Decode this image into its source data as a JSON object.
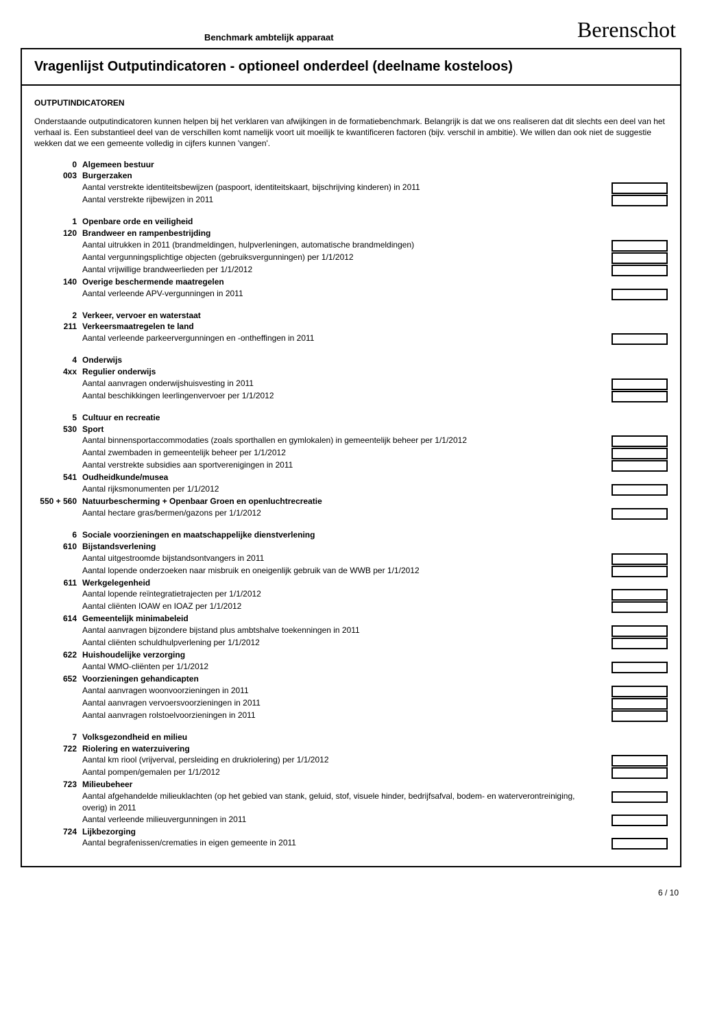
{
  "header": {
    "subtitle": "Benchmark ambtelijk apparaat",
    "brand": "Berenschot",
    "title": "Vragenlijst Outputindicatoren - optioneel onderdeel (deelname kosteloos)"
  },
  "section_label": "OUTPUTINDICATOREN",
  "intro": "Onderstaande outputindicatoren kunnen helpen bij het verklaren van afwijkingen in de formatiebenchmark. Belangrijk is dat we ons realiseren dat dit slechts een deel van het verhaal is. Een substantieel deel van de verschillen komt namelijk voort uit moeilijk te kwantificeren factoren (bijv. verschil in ambitie). We willen dan ook niet de suggestie wekken dat we een gemeente volledig in cijfers kunnen 'vangen'.",
  "groups": [
    {
      "rows": [
        {
          "code": "0",
          "text": "Algemeen bestuur",
          "bold": true,
          "box": false
        },
        {
          "code": "003",
          "text": "Burgerzaken",
          "bold": true,
          "box": false
        },
        {
          "code": "",
          "text": "Aantal verstrekte identiteitsbewijzen (paspoort, identiteitskaart, bijschrijving kinderen) in 2011",
          "bold": false,
          "box": true
        },
        {
          "code": "",
          "text": "Aantal verstrekte rijbewijzen in 2011",
          "bold": false,
          "box": true
        }
      ]
    },
    {
      "rows": [
        {
          "code": "1",
          "text": "Openbare orde en veiligheid",
          "bold": true,
          "box": false
        },
        {
          "code": "120",
          "text": "Brandweer en rampenbestrijding",
          "bold": true,
          "box": false
        },
        {
          "code": "",
          "text": "Aantal uitrukken in 2011 (brandmeldingen, hulpverleningen, automatische brandmeldingen)",
          "bold": false,
          "box": true
        },
        {
          "code": "",
          "text": "Aantal vergunningsplichtige objecten (gebruiksvergunningen) per 1/1/2012",
          "bold": false,
          "box": true
        },
        {
          "code": "",
          "text": "Aantal vrijwillige brandweerlieden per 1/1/2012",
          "bold": false,
          "box": true
        },
        {
          "code": "140",
          "text": "Overige beschermende maatregelen",
          "bold": true,
          "box": false
        },
        {
          "code": "",
          "text": "Aantal verleende APV-vergunningen in 2011",
          "bold": false,
          "box": true
        }
      ]
    },
    {
      "rows": [
        {
          "code": "2",
          "text": "Verkeer, vervoer en waterstaat",
          "bold": true,
          "box": false
        },
        {
          "code": "211",
          "text": "Verkeersmaatregelen te land",
          "bold": true,
          "box": false
        },
        {
          "code": "",
          "text": "Aantal verleende parkeervergunningen en -ontheffingen in 2011",
          "bold": false,
          "box": true
        }
      ]
    },
    {
      "rows": [
        {
          "code": "4",
          "text": "Onderwijs",
          "bold": true,
          "box": false
        },
        {
          "code": "4xx",
          "text": "Regulier onderwijs",
          "bold": true,
          "box": false
        },
        {
          "code": "",
          "text": "Aantal aanvragen onderwijshuisvesting in 2011",
          "bold": false,
          "box": true
        },
        {
          "code": "",
          "text": "Aantal beschikkingen leerlingenvervoer per 1/1/2012",
          "bold": false,
          "box": true
        }
      ]
    },
    {
      "rows": [
        {
          "code": "5",
          "text": "Cultuur en recreatie",
          "bold": true,
          "box": false
        },
        {
          "code": "530",
          "text": "Sport",
          "bold": true,
          "box": false
        },
        {
          "code": "",
          "text": "Aantal binnensportaccommodaties (zoals sporthallen en gymlokalen) in gemeentelijk beheer per 1/1/2012",
          "bold": false,
          "box": true
        },
        {
          "code": "",
          "text": "Aantal zwembaden in gemeentelijk beheer per 1/1/2012",
          "bold": false,
          "box": true
        },
        {
          "code": "",
          "text": "Aantal verstrekte subsidies aan sportverenigingen in 2011",
          "bold": false,
          "box": true
        },
        {
          "code": "541",
          "text": "Oudheidkunde/musea",
          "bold": true,
          "box": false
        },
        {
          "code": "",
          "text": "Aantal rijksmonumenten per 1/1/2012",
          "bold": false,
          "box": true
        },
        {
          "code": "550 + 560",
          "text": "Natuurbescherming + Openbaar Groen en openluchtrecreatie",
          "bold": true,
          "box": false
        },
        {
          "code": "",
          "text": "Aantal hectare gras/bermen/gazons per 1/1/2012",
          "bold": false,
          "box": true
        }
      ]
    },
    {
      "rows": [
        {
          "code": "6",
          "text": "Sociale voorzieningen en maatschappelijke dienstverlening",
          "bold": true,
          "box": false
        },
        {
          "code": "610",
          "text": "Bijstandsverlening",
          "bold": true,
          "box": false
        },
        {
          "code": "",
          "text": "Aantal uitgestroomde bijstandsontvangers in 2011",
          "bold": false,
          "box": true
        },
        {
          "code": "",
          "text": "Aantal lopende onderzoeken naar misbruik en oneigenlijk gebruik van de WWB per 1/1/2012",
          "bold": false,
          "box": true
        },
        {
          "code": "611",
          "text": "Werkgelegenheid",
          "bold": true,
          "box": false
        },
        {
          "code": "",
          "text": "Aantal lopende reïntegratietrajecten per 1/1/2012",
          "bold": false,
          "box": true
        },
        {
          "code": "",
          "text": "Aantal cliënten IOAW en IOAZ per 1/1/2012",
          "bold": false,
          "box": true
        },
        {
          "code": "614",
          "text": "Gemeentelijk minimabeleid",
          "bold": true,
          "box": false
        },
        {
          "code": "",
          "text": "Aantal aanvragen bijzondere bijstand plus ambtshalve toekenningen in 2011",
          "bold": false,
          "box": true
        },
        {
          "code": "",
          "text": "Aantal cliënten schuldhulpverlening per 1/1/2012",
          "bold": false,
          "box": true
        },
        {
          "code": "622",
          "text": "Huishoudelijke verzorging",
          "bold": true,
          "box": false
        },
        {
          "code": "",
          "text": "Aantal WMO-cliënten per 1/1/2012",
          "bold": false,
          "box": true
        },
        {
          "code": "652",
          "text": "Voorzieningen gehandicapten",
          "bold": true,
          "box": false
        },
        {
          "code": "",
          "text": "Aantal aanvragen woonvoorzieningen in 2011",
          "bold": false,
          "box": true
        },
        {
          "code": "",
          "text": "Aantal aanvragen vervoersvoorzieningen in 2011",
          "bold": false,
          "box": true
        },
        {
          "code": "",
          "text": "Aantal aanvragen rolstoelvoorzieningen in 2011",
          "bold": false,
          "box": true
        }
      ]
    },
    {
      "rows": [
        {
          "code": "7",
          "text": "Volksgezondheid en milieu",
          "bold": true,
          "box": false
        },
        {
          "code": "722",
          "text": "Riolering en waterzuivering",
          "bold": true,
          "box": false
        },
        {
          "code": "",
          "text": "Aantal km riool (vrijverval, persleiding en drukriolering) per 1/1/2012",
          "bold": false,
          "box": true
        },
        {
          "code": "",
          "text": "Aantal pompen/gemalen per 1/1/2012",
          "bold": false,
          "box": true
        },
        {
          "code": "723",
          "text": "Milieubeheer",
          "bold": true,
          "box": false
        },
        {
          "code": "",
          "text": "Aantal afgehandelde milieuklachten (op het gebied van stank, geluid, stof, visuele hinder, bedrijfsafval, bodem- en waterverontreiniging, overig) in 2011",
          "bold": false,
          "box": true
        },
        {
          "code": "",
          "text": "Aantal verleende milieuvergunningen in 2011",
          "bold": false,
          "box": true
        },
        {
          "code": "724",
          "text": "Lijkbezorging",
          "bold": true,
          "box": false
        },
        {
          "code": "",
          "text": "Aantal begrafenissen/crematies in eigen gemeente in 2011",
          "bold": false,
          "box": true
        }
      ]
    }
  ],
  "page_number": "6 / 10"
}
